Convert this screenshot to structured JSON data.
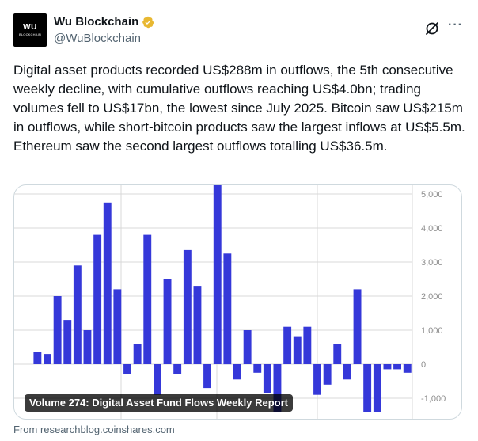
{
  "author": {
    "avatar_line1": "WU",
    "avatar_line2": "BLOCKCHAIN",
    "display_name": "Wu Blockchain",
    "handle": "@WuBlockchain",
    "verified_color": "#e8b832"
  },
  "tweet": {
    "text": "Digital asset products recorded US$288m in outflows, the 5th consecutive weekly decline, with cumulative outflows reaching US$4.0bn; trading volumes fell to US$17bn, the lowest since July 2025. Bitcoin saw US$215m in outflows, while short-bitcoin products saw the largest inflows at US$5.5m. Ethereum saw the second largest outflows totalling US$36.5m."
  },
  "card": {
    "title": "Volume 274: Digital Asset Fund Flows Weekly Report",
    "source": "From researchblog.coinshares.com"
  },
  "icons": {
    "grok": "grok-icon",
    "more": "more-icon",
    "verified": "verified-badge-icon"
  },
  "colors": {
    "bar": "#3538d9",
    "grid": "#d9d9d9",
    "axis_text": "#8c8c8c"
  },
  "chart_data": {
    "type": "bar",
    "title": "",
    "xlabel": "",
    "ylabel": "",
    "ylim": [
      -1400,
      5350
    ],
    "yticks": [
      5000,
      4000,
      3000,
      2000,
      1000,
      0,
      -1000
    ],
    "ytick_labels": [
      "5,000",
      "4,000",
      "3,000",
      "2,000",
      "1,000",
      "0",
      "-1,000"
    ],
    "y_axis_position": "right",
    "grid": true,
    "values": [
      350,
      300,
      2000,
      1300,
      2900,
      1000,
      3800,
      4750,
      2200,
      -300,
      600,
      3800,
      -900,
      2500,
      -300,
      3350,
      2300,
      -700,
      5350,
      3250,
      -450,
      1000,
      -250,
      -850,
      -1400,
      1100,
      800,
      1100,
      -900,
      -600,
      600,
      -450,
      2200,
      -1400,
      -1400,
      -150,
      -150,
      -250
    ]
  }
}
